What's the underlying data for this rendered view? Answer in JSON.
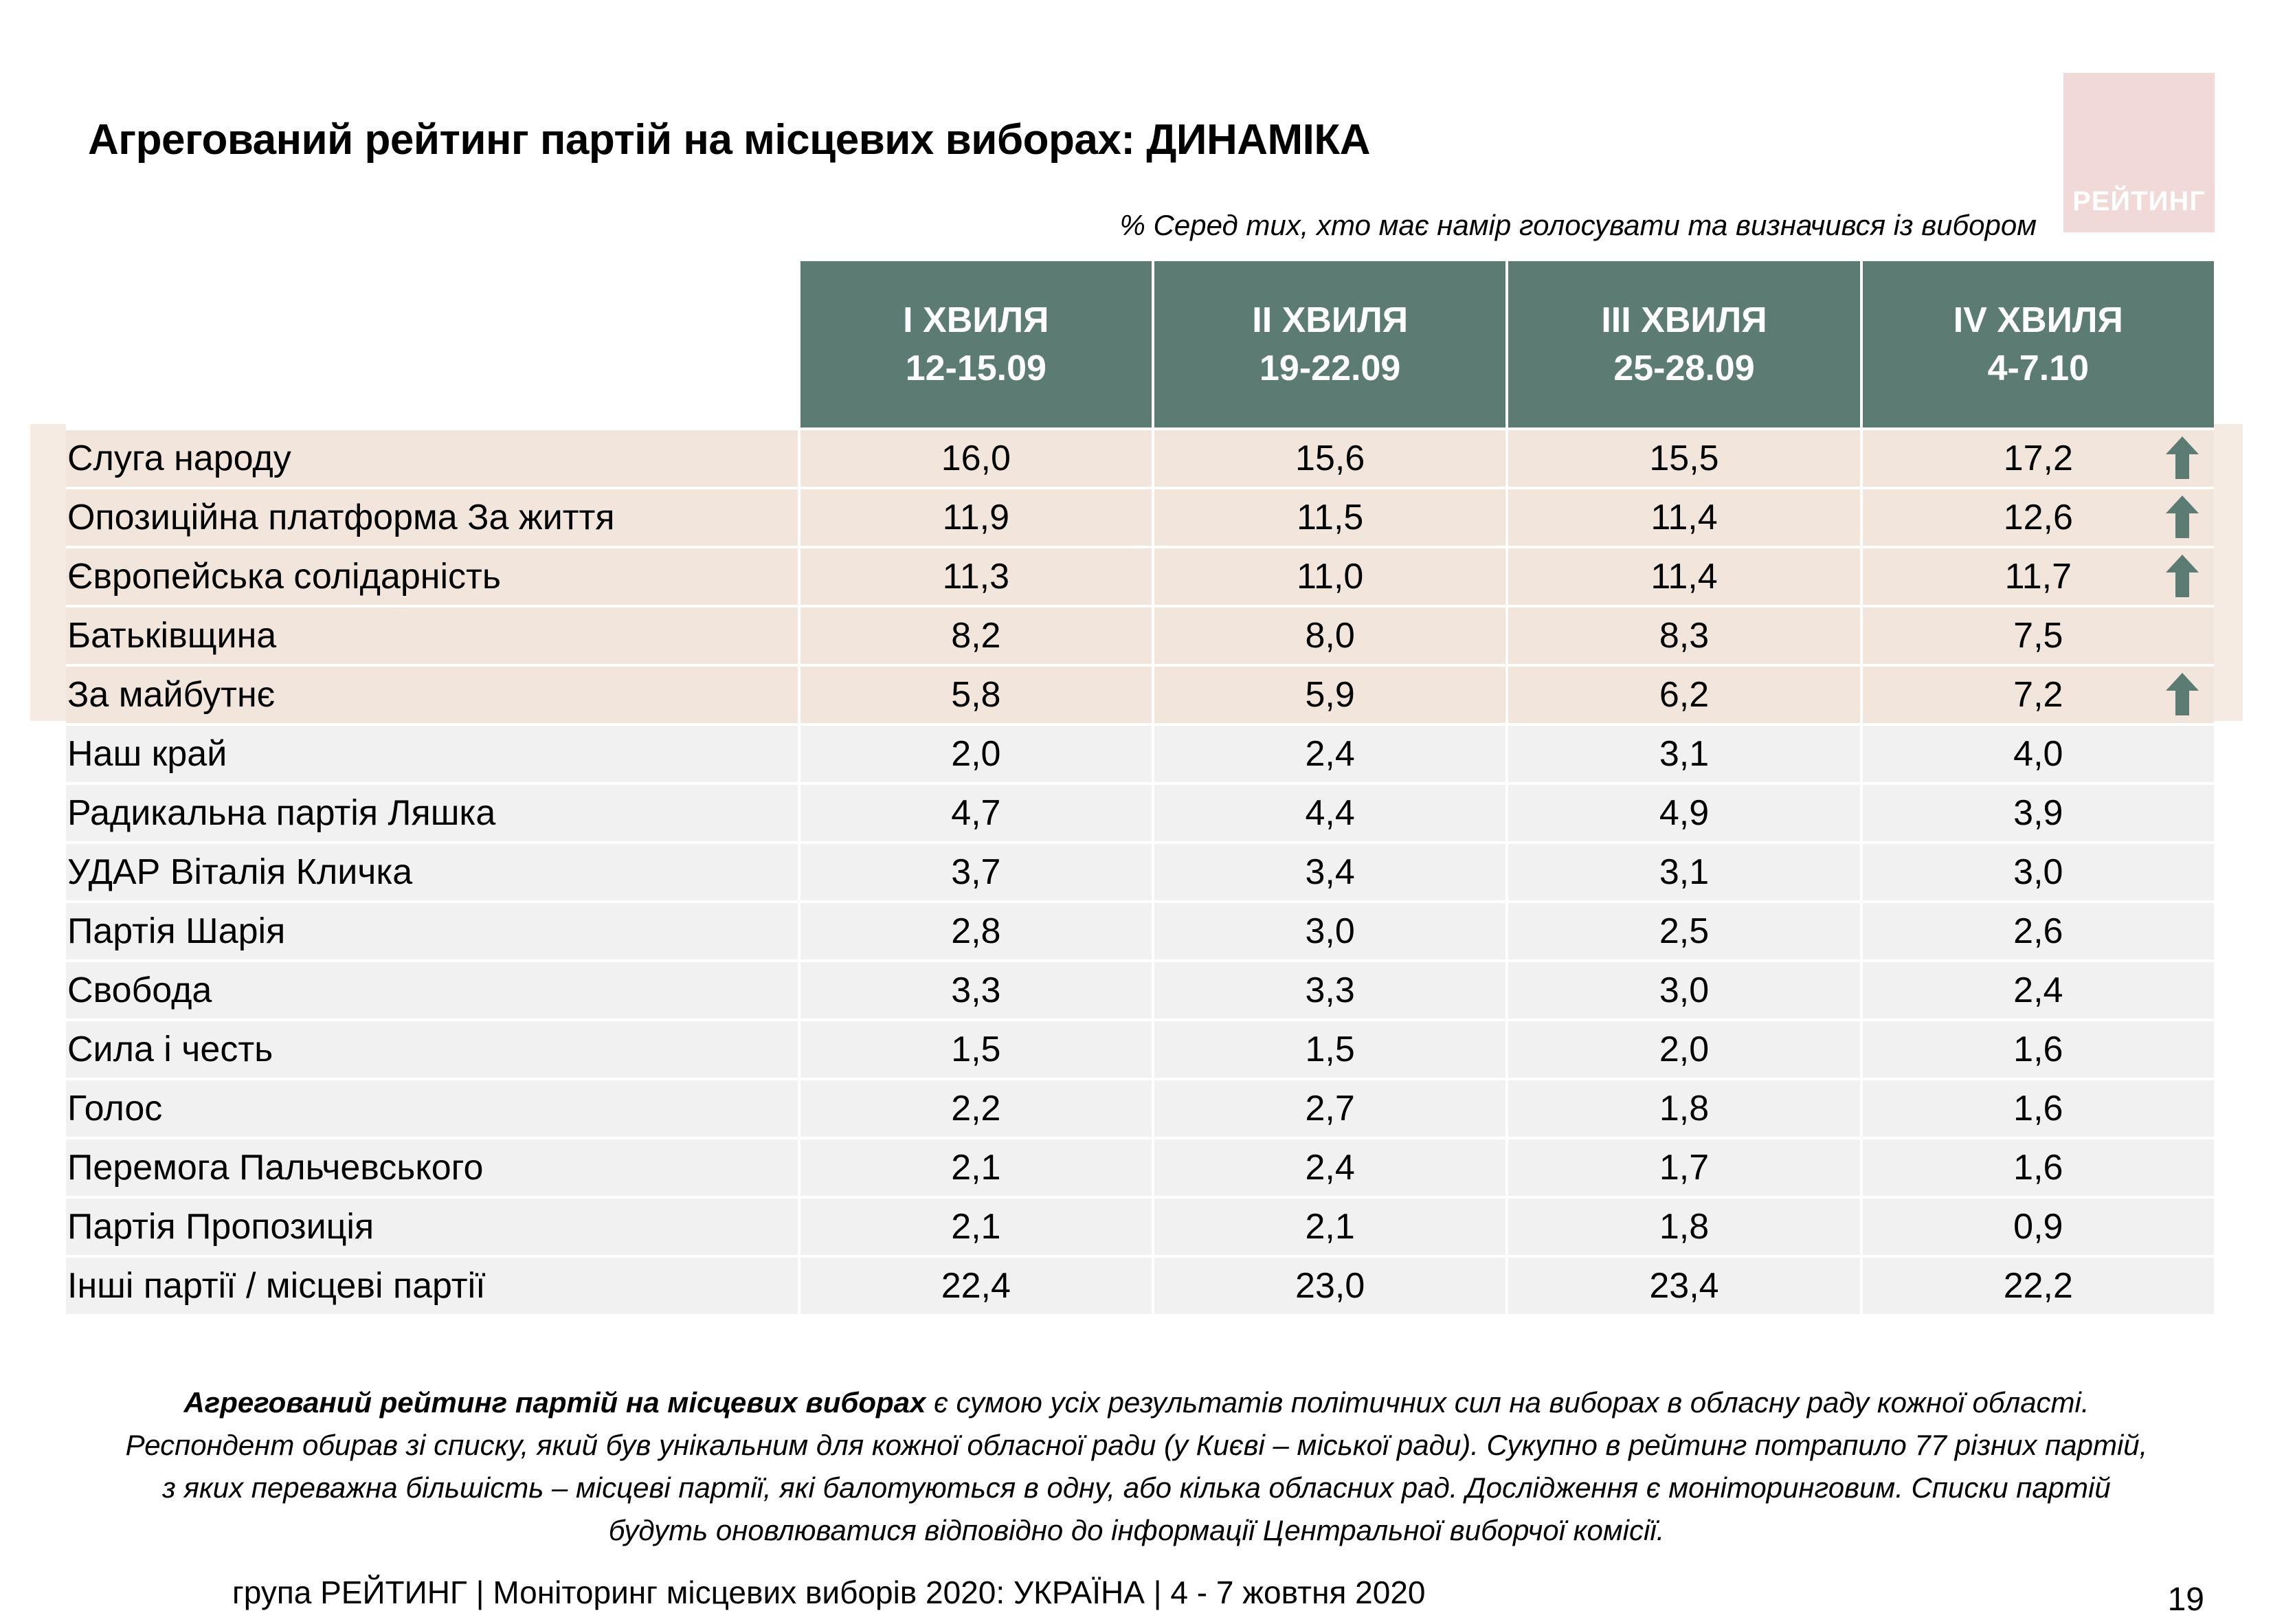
{
  "title": "Агрегований рейтинг партій на місцевих виборах: ДИНАМІКА",
  "logo_text": "РЕЙТИНГ",
  "subtitle": "% Серед тих, хто має намір голосувати та визначився із вибором",
  "colors": {
    "header_bg": "#5b7b73",
    "highlight_bg": "#f2e5dc",
    "row_bg": "#f1f1f1",
    "arrow": "#5b7b73",
    "logo_bg": "#f0d9d7"
  },
  "waves": [
    {
      "name": "I ХВИЛЯ",
      "dates": "12-15.09"
    },
    {
      "name": "II ХВИЛЯ",
      "dates": "19-22.09"
    },
    {
      "name": "III ХВИЛЯ",
      "dates": "25-28.09"
    },
    {
      "name": "IV ХВИЛЯ",
      "dates": "4-7.10"
    }
  ],
  "rows": [
    {
      "party": "Слуга народу",
      "values": [
        "16,0",
        "15,6",
        "15,5",
        "17,2"
      ],
      "highlight": true,
      "arrow": "arrow-up-icon"
    },
    {
      "party": "Опозиційна платформа За життя",
      "values": [
        "11,9",
        "11,5",
        "11,4",
        "12,6"
      ],
      "highlight": true,
      "arrow": "arrow-up-icon"
    },
    {
      "party": "Європейська солідарність",
      "values": [
        "11,3",
        "11,0",
        "11,4",
        "11,7"
      ],
      "highlight": true,
      "arrow": "arrow-up-icon"
    },
    {
      "party": "Батьківщина",
      "values": [
        "8,2",
        "8,0",
        "8,3",
        "7,5"
      ],
      "highlight": true,
      "arrow": null
    },
    {
      "party": "За майбутнє",
      "values": [
        "5,8",
        "5,9",
        "6,2",
        "7,2"
      ],
      "highlight": true,
      "arrow": "arrow-up-icon"
    },
    {
      "party": "Наш край",
      "values": [
        "2,0",
        "2,4",
        "3,1",
        "4,0"
      ],
      "highlight": false,
      "arrow": null
    },
    {
      "party": "Радикальна партія Ляшка",
      "values": [
        "4,7",
        "4,4",
        "4,9",
        "3,9"
      ],
      "highlight": false,
      "arrow": null
    },
    {
      "party": "УДАР Віталія Кличка",
      "values": [
        "3,7",
        "3,4",
        "3,1",
        "3,0"
      ],
      "highlight": false,
      "arrow": null
    },
    {
      "party": "Партія Шарія",
      "values": [
        "2,8",
        "3,0",
        "2,5",
        "2,6"
      ],
      "highlight": false,
      "arrow": null
    },
    {
      "party": "Свобода",
      "values": [
        "3,3",
        "3,3",
        "3,0",
        "2,4"
      ],
      "highlight": false,
      "arrow": null
    },
    {
      "party": "Сила і честь",
      "values": [
        "1,5",
        "1,5",
        "2,0",
        "1,6"
      ],
      "highlight": false,
      "arrow": null
    },
    {
      "party": "Голос",
      "values": [
        "2,2",
        "2,7",
        "1,8",
        "1,6"
      ],
      "highlight": false,
      "arrow": null
    },
    {
      "party": "Перемога Пальчевського",
      "values": [
        "2,1",
        "2,4",
        "1,7",
        "1,6"
      ],
      "highlight": false,
      "arrow": null
    },
    {
      "party": "Партія Пропозиція",
      "values": [
        "2,1",
        "2,1",
        "1,8",
        "0,9"
      ],
      "highlight": false,
      "arrow": null
    },
    {
      "party": "Інші партії / місцеві партії",
      "values": [
        "22,4",
        "23,0",
        "23,4",
        "22,2"
      ],
      "highlight": false,
      "arrow": null
    }
  ],
  "footnote": {
    "bold": "Агрегований рейтинг партій на місцевих виборах",
    "text": " є сумою усіх результатів політичних сил на виборах в обласну раду кожної області. Респондент обирав зі списку, який був унікальним для кожної обласної ради (у Києві – міської ради). Сукупно в рейтинг потрапило 77 різних партій, з яких переважна більшість – місцеві партії, які балотуються в одну, або кілька обласних рад. Дослідження є моніторинговим. Списки партій будуть оновлюватися відповідно до інформації Центральної виборчої комісії."
  },
  "footer": "група РЕЙТИНГ | Моніторинг місцевих виборів 2020: УКРАЇНА | 4 - 7 жовтня 2020",
  "page_number": "19"
}
